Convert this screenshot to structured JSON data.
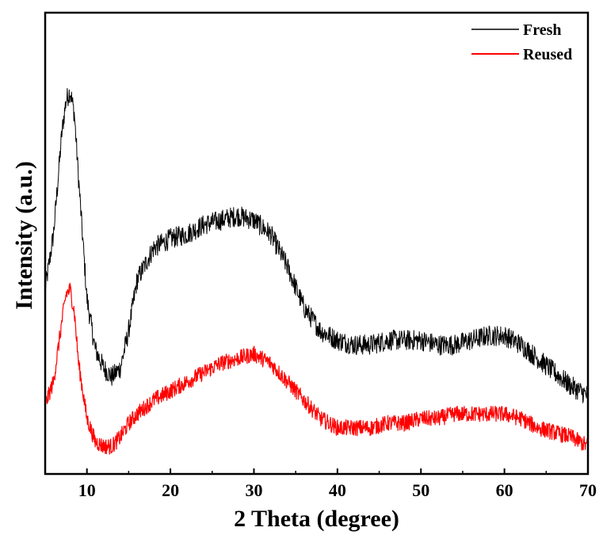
{
  "chart_data": {
    "type": "line",
    "title": "",
    "xlabel": "2 Theta (degree)",
    "ylabel": "Intensity (a.u.)",
    "xlim": [
      5,
      70
    ],
    "ylim": [
      0,
      1
    ],
    "x_ticks": [
      10,
      20,
      30,
      40,
      50,
      60,
      70
    ],
    "y_ticks_visible": false,
    "grid": false,
    "legend_position": "top-right",
    "series": [
      {
        "name": "Fresh",
        "color": "#000000",
        "x": [
          5,
          6,
          7,
          7.5,
          8,
          8.5,
          9,
          10,
          11,
          12,
          13,
          14,
          15,
          16,
          18,
          20,
          22,
          24,
          26,
          28,
          30,
          32,
          34,
          36,
          38,
          40,
          42,
          44,
          46,
          48,
          50,
          52,
          54,
          56,
          58,
          60,
          62,
          64,
          66,
          68,
          70
        ],
        "values": [
          0.4,
          0.52,
          0.74,
          0.81,
          0.83,
          0.78,
          0.64,
          0.38,
          0.27,
          0.23,
          0.21,
          0.23,
          0.31,
          0.42,
          0.49,
          0.51,
          0.52,
          0.54,
          0.55,
          0.56,
          0.55,
          0.52,
          0.45,
          0.36,
          0.31,
          0.29,
          0.28,
          0.28,
          0.29,
          0.29,
          0.29,
          0.28,
          0.28,
          0.29,
          0.3,
          0.3,
          0.28,
          0.25,
          0.22,
          0.19,
          0.17
        ]
      },
      {
        "name": "Reused",
        "color": "#ff0000",
        "x": [
          5,
          6,
          7,
          7.5,
          8,
          8.5,
          9,
          10,
          11,
          12,
          13,
          14,
          15,
          16,
          18,
          20,
          22,
          24,
          26,
          28,
          30,
          32,
          34,
          36,
          38,
          40,
          42,
          44,
          46,
          48,
          50,
          52,
          54,
          56,
          58,
          60,
          62,
          64,
          66,
          68,
          70
        ],
        "values": [
          0.15,
          0.2,
          0.33,
          0.39,
          0.4,
          0.35,
          0.24,
          0.12,
          0.07,
          0.06,
          0.06,
          0.08,
          0.11,
          0.13,
          0.16,
          0.18,
          0.2,
          0.22,
          0.24,
          0.25,
          0.26,
          0.24,
          0.2,
          0.16,
          0.12,
          0.1,
          0.1,
          0.1,
          0.11,
          0.11,
          0.12,
          0.12,
          0.13,
          0.13,
          0.13,
          0.13,
          0.12,
          0.1,
          0.09,
          0.08,
          0.06
        ]
      }
    ]
  }
}
